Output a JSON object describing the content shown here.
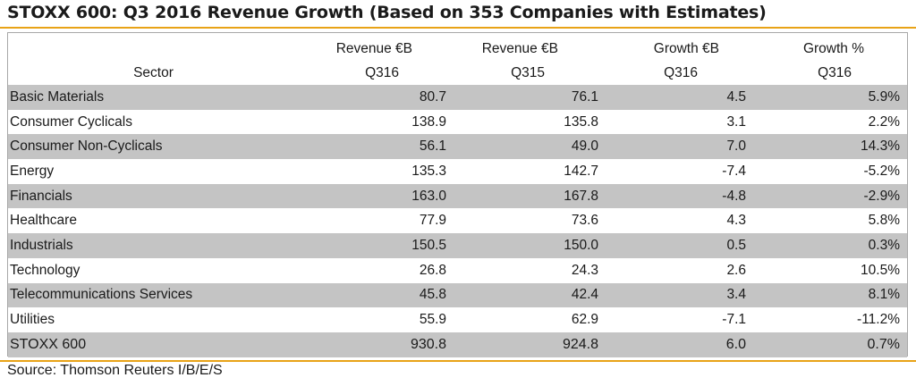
{
  "chart_data": {
    "type": "table",
    "title": "STOXX 600: Q3 2016 Revenue Growth (Based on 353 Companies with Estimates)",
    "columns": [
      {
        "key": "sector",
        "label": "Sector",
        "sublabel": ""
      },
      {
        "key": "rev_q316",
        "label": "Revenue €B",
        "sublabel": "Q316"
      },
      {
        "key": "rev_q315",
        "label": "Revenue €B",
        "sublabel": "Q315"
      },
      {
        "key": "growth_eur",
        "label": "Growth €B",
        "sublabel": "Q316"
      },
      {
        "key": "growth_pct",
        "label": "Growth %",
        "sublabel": "Q316"
      }
    ],
    "rows": [
      {
        "sector": "Basic Materials",
        "rev_q316": "80.7",
        "rev_q315": "76.1",
        "growth_eur": "4.5",
        "growth_pct": "5.9%"
      },
      {
        "sector": "Consumer Cyclicals",
        "rev_q316": "138.9",
        "rev_q315": "135.8",
        "growth_eur": "3.1",
        "growth_pct": "2.2%"
      },
      {
        "sector": "Consumer Non-Cyclicals",
        "rev_q316": "56.1",
        "rev_q315": "49.0",
        "growth_eur": "7.0",
        "growth_pct": "14.3%"
      },
      {
        "sector": "Energy",
        "rev_q316": "135.3",
        "rev_q315": "142.7",
        "growth_eur": "-7.4",
        "growth_pct": "-5.2%"
      },
      {
        "sector": "Financials",
        "rev_q316": "163.0",
        "rev_q315": "167.8",
        "growth_eur": "-4.8",
        "growth_pct": "-2.9%"
      },
      {
        "sector": "Healthcare",
        "rev_q316": "77.9",
        "rev_q315": "73.6",
        "growth_eur": "4.3",
        "growth_pct": "5.8%"
      },
      {
        "sector": "Industrials",
        "rev_q316": "150.5",
        "rev_q315": "150.0",
        "growth_eur": "0.5",
        "growth_pct": "0.3%"
      },
      {
        "sector": "Technology",
        "rev_q316": "26.8",
        "rev_q315": "24.3",
        "growth_eur": "2.6",
        "growth_pct": "10.5%"
      },
      {
        "sector": "Telecommunications Services",
        "rev_q316": "45.8",
        "rev_q315": "42.4",
        "growth_eur": "3.4",
        "growth_pct": "8.1%"
      },
      {
        "sector": "Utilities",
        "rev_q316": "55.9",
        "rev_q315": "62.9",
        "growth_eur": "-7.1",
        "growth_pct": "-11.2%"
      }
    ],
    "total": {
      "sector": "STOXX 600",
      "rev_q316": "930.8",
      "rev_q315": "924.8",
      "growth_eur": "6.0",
      "growth_pct": "0.7%"
    },
    "source": "Source: Thomson Reuters I/B/E/S",
    "colors": {
      "accent_rule": "#e8a317",
      "row_shade": "#c4c4c4",
      "frame": "#a8a8a8"
    }
  }
}
